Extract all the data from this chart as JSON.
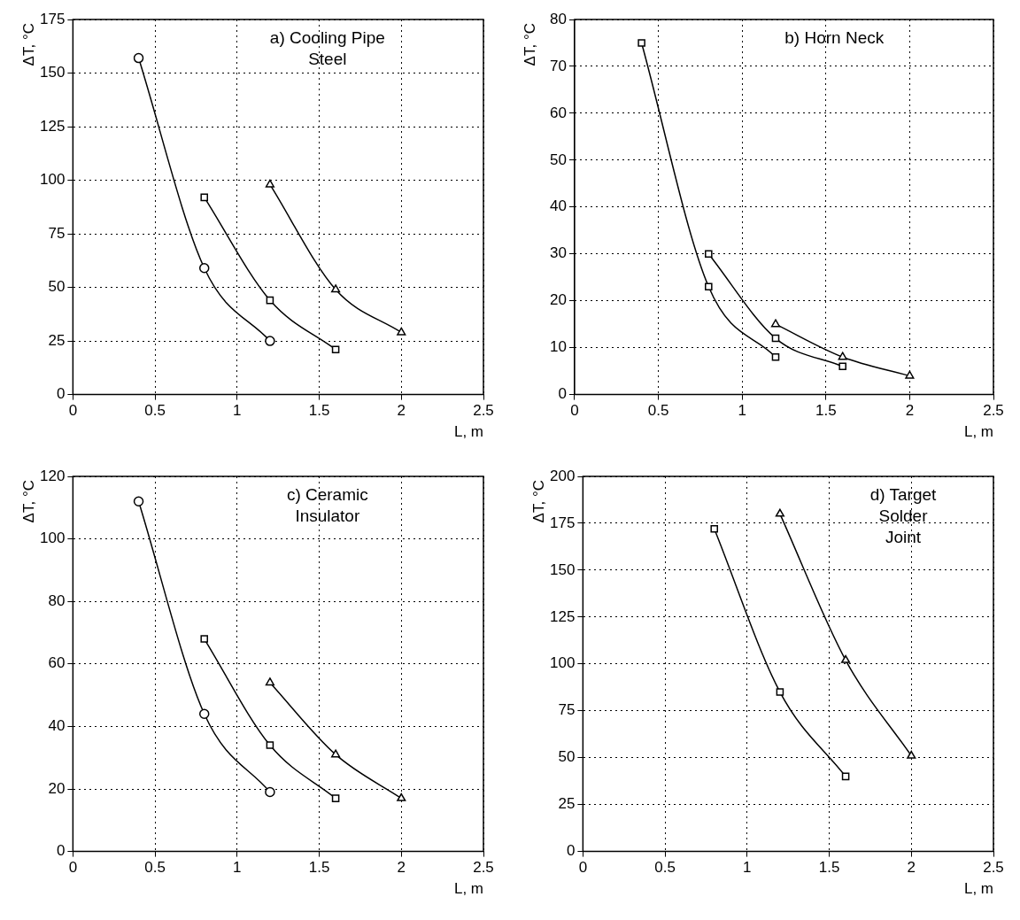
{
  "chart_data": [
    {
      "type": "line",
      "title": "a) Cooling Pipe\nSteel",
      "xlabel": "L, m",
      "ylabel": "ΔT, °C",
      "xlim": [
        0,
        2.5
      ],
      "xticks": [
        0,
        0.5,
        1,
        1.5,
        2,
        2.5
      ],
      "ylim": [
        0,
        175
      ],
      "yticks": [
        0,
        25,
        50,
        75,
        100,
        125,
        150,
        175
      ],
      "grid": true,
      "series": [
        {
          "color": "#000000",
          "marker": "circle",
          "x": [
            0.4,
            0.8,
            1.2
          ],
          "values": [
            157,
            59,
            25
          ]
        },
        {
          "color": "#000000",
          "marker": "square",
          "x": [
            0.8,
            1.2,
            1.6
          ],
          "values": [
            92,
            44,
            21
          ]
        },
        {
          "color": "#000000",
          "marker": "triangle",
          "x": [
            1.2,
            1.6,
            2.0
          ],
          "values": [
            98,
            49,
            29
          ]
        }
      ]
    },
    {
      "type": "line",
      "title": "b) Horn Neck",
      "xlabel": "L, m",
      "ylabel": "ΔT, °C",
      "xlim": [
        0,
        2.5
      ],
      "xticks": [
        0,
        0.5,
        1,
        1.5,
        2,
        2.5
      ],
      "ylim": [
        0,
        80
      ],
      "yticks": [
        0,
        10,
        20,
        30,
        40,
        50,
        60,
        70,
        80
      ],
      "grid": true,
      "series": [
        {
          "color": "#000000",
          "marker": "square",
          "x": [
            0.4,
            0.8,
            1.2
          ],
          "values": [
            75,
            23,
            8
          ]
        },
        {
          "color": "#000000",
          "marker": "square",
          "x": [
            0.8,
            1.2,
            1.6
          ],
          "values": [
            30,
            12,
            6
          ]
        },
        {
          "color": "#000000",
          "marker": "triangle",
          "x": [
            1.2,
            1.6,
            2.0
          ],
          "values": [
            15,
            8,
            4
          ]
        }
      ]
    },
    {
      "type": "line",
      "title": "c) Ceramic\nInsulator",
      "xlabel": "L, m",
      "ylabel": "ΔT, °C",
      "xlim": [
        0,
        2.5
      ],
      "xticks": [
        0,
        0.5,
        1,
        1.5,
        2,
        2.5
      ],
      "ylim": [
        0,
        120
      ],
      "yticks": [
        0,
        20,
        40,
        60,
        80,
        100,
        120
      ],
      "grid": true,
      "series": [
        {
          "color": "#000000",
          "marker": "circle",
          "x": [
            0.4,
            0.8,
            1.2
          ],
          "values": [
            112,
            44,
            19
          ]
        },
        {
          "color": "#000000",
          "marker": "square",
          "x": [
            0.8,
            1.2,
            1.6
          ],
          "values": [
            68,
            34,
            17
          ]
        },
        {
          "color": "#000000",
          "marker": "triangle",
          "x": [
            1.2,
            1.6,
            2.0
          ],
          "values": [
            54,
            31,
            17
          ]
        }
      ]
    },
    {
      "type": "line",
      "title": "d) Target\nSolder\nJoint",
      "xlabel": "L, m",
      "ylabel": "ΔT, °C",
      "xlim": [
        0,
        2.5
      ],
      "xticks": [
        0,
        0.5,
        1,
        1.5,
        2,
        2.5
      ],
      "ylim": [
        0,
        200
      ],
      "yticks": [
        0,
        25,
        50,
        75,
        100,
        125,
        150,
        175,
        200
      ],
      "grid": true,
      "series": [
        {
          "color": "#000000",
          "marker": "square",
          "x": [
            0.8,
            1.2,
            1.6
          ],
          "values": [
            172,
            85,
            40
          ]
        },
        {
          "color": "#000000",
          "marker": "triangle",
          "x": [
            1.2,
            1.6,
            2.0
          ],
          "values": [
            180,
            102,
            51
          ]
        }
      ]
    }
  ]
}
